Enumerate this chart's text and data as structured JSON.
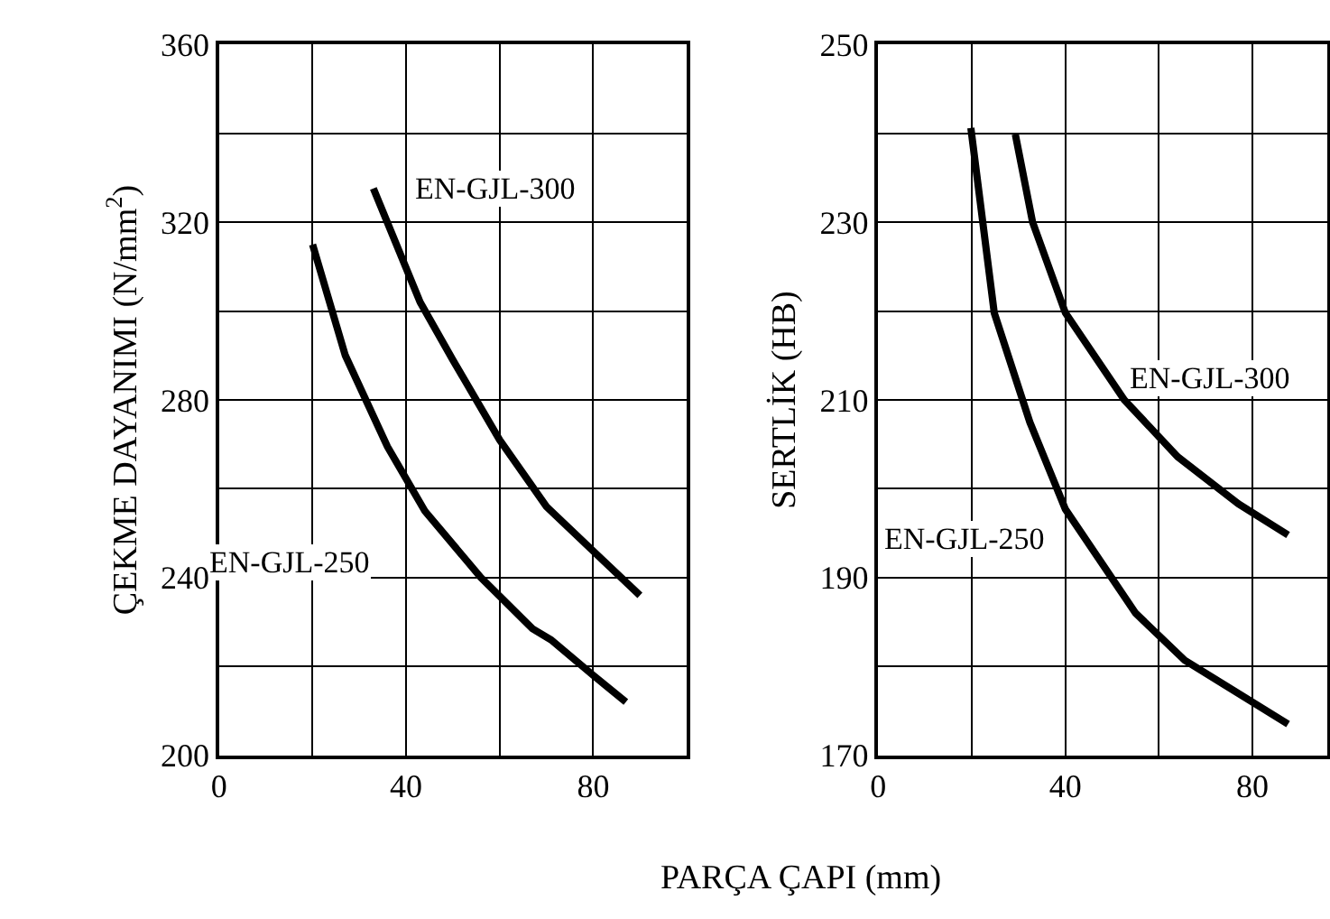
{
  "chart_data": [
    {
      "type": "line",
      "xlabel": "PARÇA ÇAPI (mm)",
      "ylabel": "ÇEKME DAYANIMI (N/mm$^{2}$)",
      "xlim": [
        0,
        100
      ],
      "ylim": [
        200,
        360
      ],
      "xticks": [
        0,
        {
          "value": 20,
          "label": null
        },
        40,
        {
          "value": 60,
          "label": null
        },
        80,
        {
          "value": 100,
          "label": null
        }
      ],
      "yticks": [
        200,
        {
          "value": 220,
          "label": null
        },
        240,
        {
          "value": 260,
          "label": null
        },
        280,
        {
          "value": 300,
          "label": null
        },
        320,
        {
          "value": 340,
          "label": null
        },
        360
      ],
      "grid": true,
      "marker": "none",
      "line_style": "solid",
      "series": [
        {
          "name": "EN-GJL-250",
          "color": "#000000",
          "x": [
            20,
            27,
            36,
            44,
            56,
            67,
            71,
            80,
            87
          ],
          "values": [
            315,
            290,
            269.5,
            255,
            240,
            228.5,
            226,
            218,
            212
          ]
        },
        {
          "name": "EN-GJL-300",
          "color": "#000000",
          "x": [
            33,
            43,
            50,
            60,
            70,
            80,
            90
          ],
          "values": [
            327.6,
            302,
            289,
            271,
            256,
            246,
            236
          ]
        }
      ]
    },
    {
      "type": "line",
      "ylabel": "SERTLİK (HB)",
      "xlim": [
        0,
        96
      ],
      "ylim": [
        170,
        250
      ],
      "xticks": [
        0,
        {
          "value": 20,
          "label": null
        },
        40,
        {
          "value": 60,
          "label": null
        },
        80
      ],
      "yticks": [
        170,
        {
          "value": 180,
          "label": null
        },
        190,
        {
          "value": 200,
          "label": null
        },
        210,
        {
          "value": 220,
          "label": null
        },
        230,
        {
          "value": 240,
          "label": null
        },
        250
      ],
      "grid": true,
      "marker": "none",
      "line_style": "solid",
      "series": [
        {
          "name": "EN-GJL-250",
          "color": "#000000",
          "x": [
            19.8,
            24.8,
            32.4,
            40,
            55,
            65.5,
            87.6
          ],
          "values": [
            240.6,
            219.8,
            207.5,
            197.7,
            186,
            180.7,
            173.5
          ]
        },
        {
          "name": "EN-GJL-300",
          "color": "#000000",
          "x": [
            29.3,
            33,
            40,
            52.6,
            64,
            77,
            87.6
          ],
          "values": [
            239.9,
            230,
            219.8,
            210,
            203.6,
            198.3,
            194.8
          ]
        }
      ]
    }
  ]
}
